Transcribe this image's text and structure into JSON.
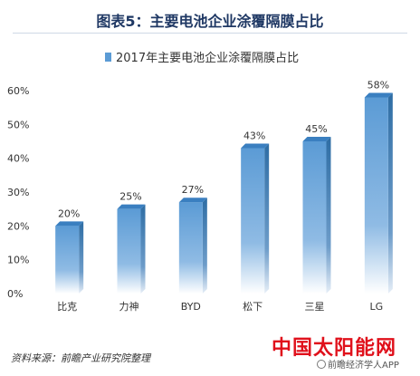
{
  "header": {
    "title": "图表5：主要电池企业涂覆隔膜占比"
  },
  "chart_data": {
    "type": "bar",
    "title": "2017年主要电池企业涂覆隔膜占比",
    "categories": [
      "比克",
      "力神",
      "BYD",
      "松下",
      "三星",
      "LG"
    ],
    "values": [
      20,
      25,
      27,
      43,
      45,
      58
    ],
    "value_labels": [
      "20%",
      "25%",
      "27%",
      "43%",
      "45%",
      "58%"
    ],
    "y_ticks": [
      "0%",
      "10%",
      "20%",
      "30%",
      "40%",
      "50%",
      "60%"
    ],
    "ylim": [
      0,
      60
    ],
    "grid": false,
    "legend": "top-center",
    "colors": {
      "bar_top": "#5b9bd5",
      "bar_bottom": "#ffffff",
      "side": "#2e6da4",
      "title": "#1f3864"
    }
  },
  "footer": {
    "source": "资料来源：前瞻产业研究院整理"
  },
  "watermark": {
    "text": "中国太阳能网",
    "sub": "前瞻经济学人APP"
  }
}
